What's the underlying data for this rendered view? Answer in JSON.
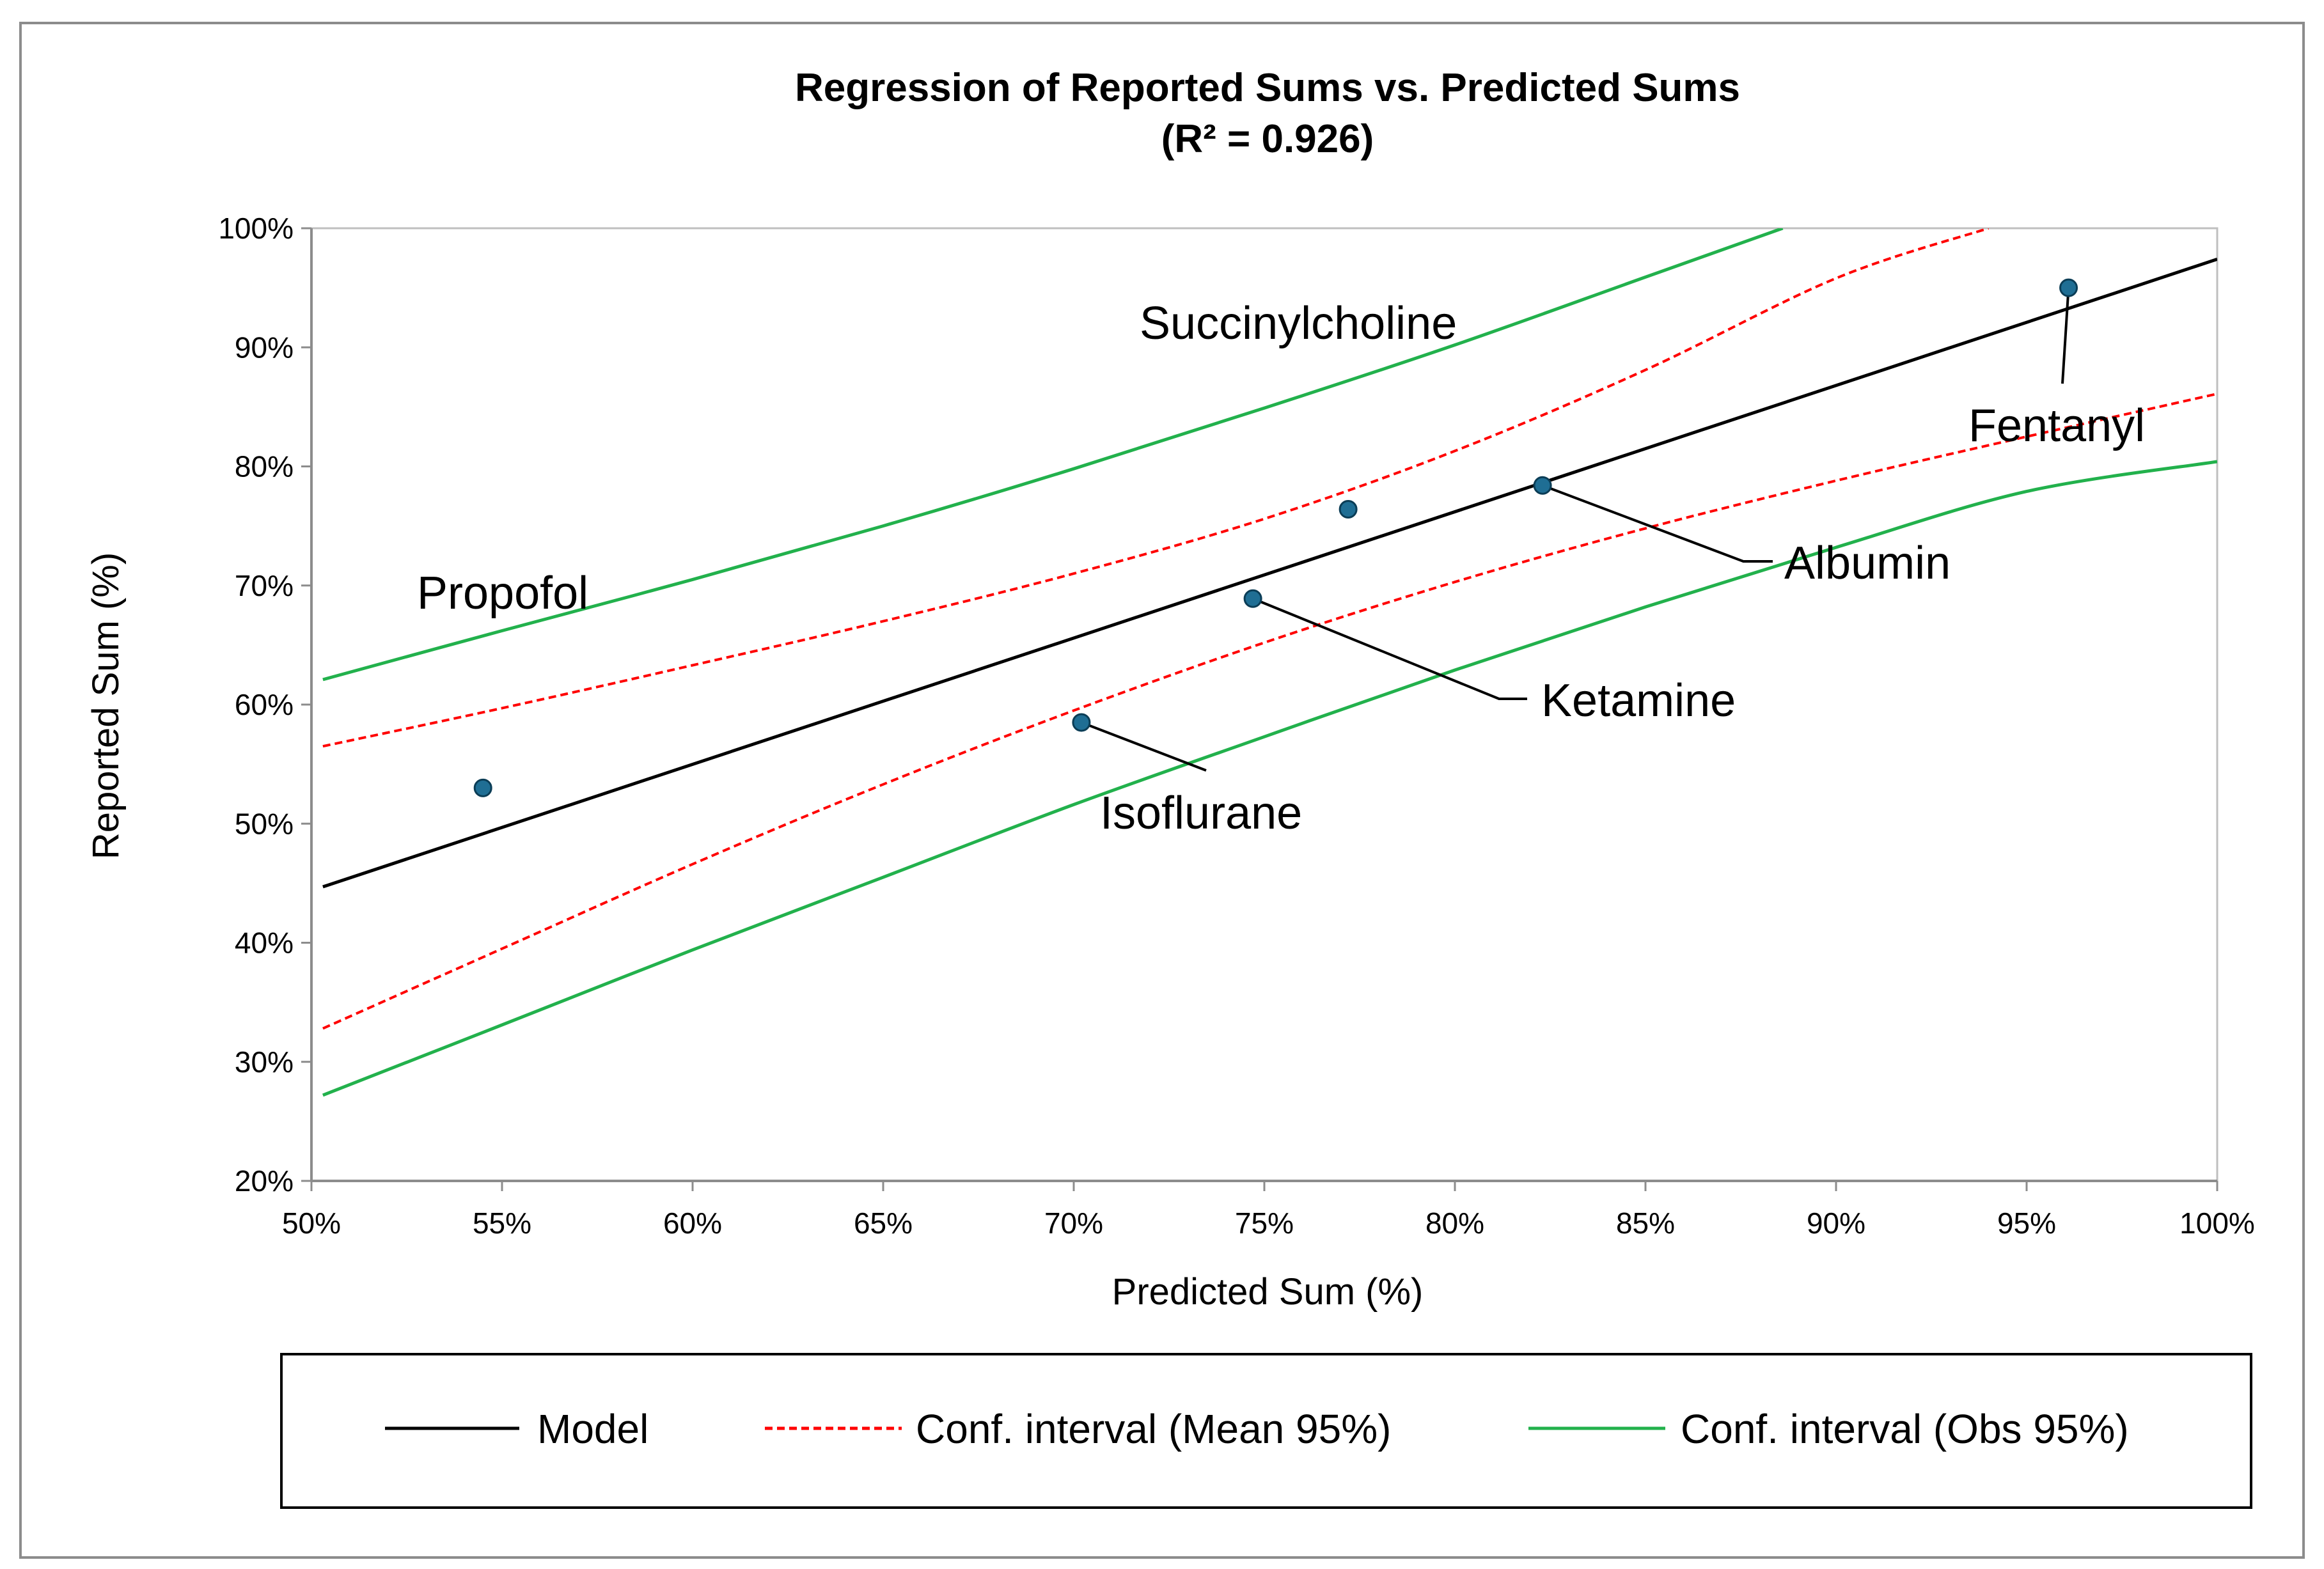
{
  "chart_data": {
    "type": "scatter",
    "title": "Regression of Reported Sums vs. Predicted Sums",
    "subtitle": "(R² = 0.926)",
    "xlabel": "Predicted Sum (%)",
    "ylabel": "Reported Sum (%)",
    "xlim": [
      50,
      100
    ],
    "ylim": [
      20,
      100
    ],
    "x_ticks": [
      50,
      55,
      60,
      65,
      70,
      75,
      80,
      85,
      90,
      95,
      100
    ],
    "y_ticks": [
      20,
      30,
      40,
      50,
      60,
      70,
      80,
      90,
      100
    ],
    "x_tick_labels": [
      "50%",
      "55%",
      "60%",
      "65%",
      "70%",
      "75%",
      "80%",
      "85%",
      "90%",
      "95%",
      "100%"
    ],
    "y_tick_labels": [
      "20%",
      "30%",
      "40%",
      "50%",
      "60%",
      "70%",
      "80%",
      "90%",
      "100%"
    ],
    "grid": false,
    "points": [
      {
        "name": "Propofol",
        "x": 54.5,
        "y": 53.0
      },
      {
        "name": "Isoflurane",
        "x": 70.2,
        "y": 58.5
      },
      {
        "name": "Ketamine",
        "x": 74.7,
        "y": 68.9
      },
      {
        "name": "Succinylcholine",
        "x": 77.2,
        "y": 76.4
      },
      {
        "name": "Albumin",
        "x": 82.3,
        "y": 78.4
      },
      {
        "name": "Fentanyl",
        "x": 96.1,
        "y": 95.0
      }
    ],
    "series": [
      {
        "name": "Model",
        "style": "solid",
        "color": "#000000",
        "x": [
          50.3,
          100
        ],
        "y": [
          44.7,
          97.4
        ]
      },
      {
        "name": "Conf. interval (Mean 95%)",
        "style": "dashed",
        "color": "#ff0000",
        "upper": {
          "x": [
            50.3,
            55,
            60,
            65,
            70,
            75,
            80,
            85,
            90,
            94.0
          ],
          "y": [
            56.5,
            59.7,
            63.3,
            67.0,
            71.0,
            75.6,
            81.3,
            88.1,
            95.8,
            100
          ]
        },
        "lower": {
          "x": [
            50.3,
            55,
            60,
            65,
            70,
            75,
            80,
            85,
            90,
            95,
            100
          ],
          "y": [
            32.8,
            39.5,
            46.6,
            53.3,
            59.5,
            65.2,
            70.3,
            74.8,
            78.8,
            82.5,
            86.1
          ]
        }
      },
      {
        "name": "Conf. interval (Obs 95%)",
        "style": "solid",
        "color": "#22b14c",
        "upper": {
          "x": [
            50.3,
            55,
            60,
            65,
            70,
            75,
            80,
            85,
            88.6
          ],
          "y": [
            62.1,
            66.2,
            70.5,
            75.0,
            79.8,
            84.9,
            90.2,
            95.9,
            100
          ]
        },
        "lower": {
          "x": [
            50.3,
            55,
            60,
            65,
            70,
            75,
            80,
            85,
            90,
            95,
            100
          ],
          "y": [
            27.2,
            33.1,
            39.4,
            45.5,
            51.6,
            57.3,
            62.9,
            68.2,
            73.2,
            77.9,
            80.4
          ]
        }
      }
    ],
    "legend": [
      "Model",
      "Conf. interval (Mean 95%)",
      "Conf. interval (Obs 95%)"
    ],
    "legend_position": "bottom",
    "colors": {
      "point": "#1f6e94",
      "model": "#000000",
      "mean_ci": "#ff0000",
      "obs_ci": "#22b14c"
    }
  }
}
